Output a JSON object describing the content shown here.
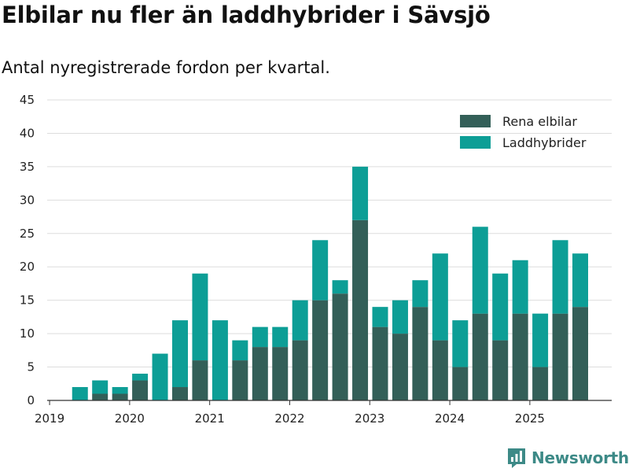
{
  "title": "Elbilar nu fler än laddhybrider i Sävsjö",
  "subtitle": "Antal nyregistrerade fordon per kvartal.",
  "brand": "Newsworthy",
  "colors": {
    "electric": "#335f58",
    "hybrid": "#0d9e96",
    "grid": "#dddddd",
    "axis": "#333333"
  },
  "chart_data": {
    "type": "bar",
    "stacked": true,
    "title": "Elbilar nu fler än laddhybrider i Sävsjö",
    "subtitle": "Antal nyregistrerade fordon per kvartal.",
    "xlabel": "",
    "ylabel": "",
    "ylim": [
      0,
      45
    ],
    "yticks": [
      0,
      5,
      10,
      15,
      20,
      25,
      30,
      35,
      40,
      45
    ],
    "grid": true,
    "legend_position": "top-right",
    "year_labels": [
      "2019",
      "2020",
      "2021",
      "2022",
      "2023",
      "2024",
      "2025"
    ],
    "categories": [
      "2019 Q1",
      "2019 Q2",
      "2019 Q3",
      "2019 Q4",
      "2020 Q1",
      "2020 Q2",
      "2020 Q3",
      "2020 Q4",
      "2021 Q1",
      "2021 Q2",
      "2021 Q3",
      "2021 Q4",
      "2022 Q1",
      "2022 Q2",
      "2022 Q3",
      "2022 Q4",
      "2023 Q1",
      "2023 Q2",
      "2023 Q3",
      "2023 Q4",
      "2024 Q1",
      "2024 Q2",
      "2024 Q3",
      "2024 Q4",
      "2025 Q1",
      "2025 Q2",
      "2025 Q3"
    ],
    "series": [
      {
        "name": "Rena elbilar",
        "values": [
          0,
          0,
          1,
          1,
          3,
          0,
          2,
          6,
          0,
          6,
          8,
          8,
          9,
          15,
          16,
          27,
          11,
          10,
          14,
          9,
          5,
          13,
          9,
          13,
          5,
          13,
          14
        ]
      },
      {
        "name": "Laddhybrider",
        "values": [
          0,
          2,
          2,
          1,
          1,
          7,
          10,
          13,
          12,
          3,
          3,
          3,
          6,
          9,
          2,
          8,
          3,
          5,
          4,
          13,
          7,
          13,
          10,
          8,
          8,
          11,
          8
        ]
      }
    ]
  }
}
